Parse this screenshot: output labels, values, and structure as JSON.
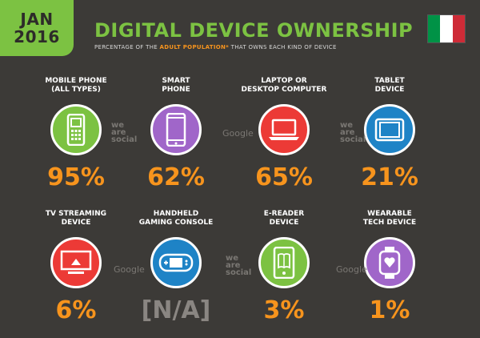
{
  "header": {
    "date_line1": "JAN",
    "date_line2": "2016",
    "title": "DIGITAL DEVICE OWNERSHIP",
    "subtitle_prefix": "PERCENTAGE OF THE ",
    "subtitle_highlight": "ADULT POPULATION*",
    "subtitle_suffix": " THAT OWNS EACH KIND OF DEVICE"
  },
  "flag": {
    "colors": [
      "#009246",
      "#ffffff",
      "#ce2b37"
    ]
  },
  "watermarks": {
    "we_are_social": [
      "we",
      "are",
      "social"
    ],
    "google": "Google"
  },
  "chart_data": {
    "type": "table",
    "title": "DIGITAL DEVICE OWNERSHIP",
    "categories": [
      "MOBILE PHONE\n(ALL TYPES)",
      "SMART\nPHONE",
      "LAPTOP OR\nDESKTOP COMPUTER",
      "TABLET\nDEVICE",
      "TV STREAMING\nDEVICE",
      "HANDHELD\nGAMING CONSOLE",
      "E-READER\nDEVICE",
      "WEARABLE\nTECH DEVICE"
    ],
    "values": [
      95,
      62,
      65,
      21,
      6,
      null,
      3,
      1
    ],
    "value_labels": [
      "95%",
      "62%",
      "65%",
      "21%",
      "6%",
      "[N/A]",
      "3%",
      "1%"
    ],
    "circle_colors": [
      "#7cc242",
      "#a066c9",
      "#ec3a36",
      "#1e83c6",
      "#ec3a36",
      "#1e83c6",
      "#7cc242",
      "#a066c9"
    ],
    "icons": [
      "mobile-phone-icon",
      "smartphone-icon",
      "laptop-icon",
      "tablet-icon",
      "tv-streaming-icon",
      "gaming-console-icon",
      "e-reader-icon",
      "wearable-icon"
    ]
  }
}
